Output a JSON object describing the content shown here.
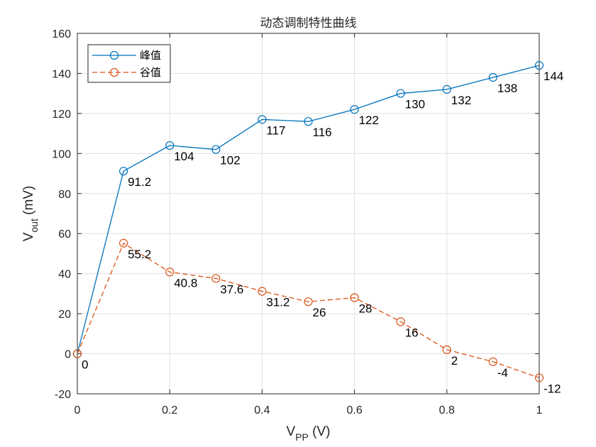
{
  "chart_data": {
    "type": "line",
    "title": "动态调制特性曲线",
    "xlabel": {
      "main": "V",
      "sub": "PP",
      "unit": " (V)"
    },
    "ylabel": {
      "main": "V",
      "sub": "out",
      "unit": " (mV)"
    },
    "xlim": [
      0,
      1
    ],
    "ylim": [
      -20,
      160
    ],
    "xticks": [
      0,
      0.2,
      0.4,
      0.6,
      0.8,
      1
    ],
    "xtick_labels": [
      "0",
      "0.2",
      "0.4",
      "0.6",
      "0.8",
      "1"
    ],
    "yticks": [
      -20,
      0,
      20,
      40,
      60,
      80,
      100,
      120,
      140,
      160
    ],
    "ytick_labels": [
      "-20",
      "0",
      "20",
      "40",
      "60",
      "80",
      "100",
      "120",
      "140",
      "160"
    ],
    "grid": true,
    "legend_position": "top-left",
    "x": [
      0,
      0.1,
      0.2,
      0.3,
      0.4,
      0.5,
      0.6,
      0.7,
      0.8,
      0.9,
      1.0
    ],
    "series": [
      {
        "name": "峰值",
        "color": "#0072BD",
        "line_style": "solid",
        "marker": "circle",
        "values": [
          0,
          91.2,
          104,
          102,
          117,
          116,
          122,
          130,
          132,
          138,
          144
        ],
        "labels": [
          "",
          "91.2",
          "104",
          "102",
          "117",
          "116",
          "122",
          "130",
          "132",
          "138",
          "144"
        ]
      },
      {
        "name": "谷值",
        "color": "#D95319",
        "line_style": "dashed",
        "marker": "circle",
        "values": [
          0,
          55.2,
          40.8,
          37.6,
          31.2,
          26,
          28,
          16,
          2,
          -4,
          -12
        ],
        "labels": [
          "0",
          "55.2",
          "40.8",
          "37.6",
          "31.2",
          "26",
          "28",
          "16",
          "2",
          "-4",
          "-12"
        ]
      }
    ]
  }
}
